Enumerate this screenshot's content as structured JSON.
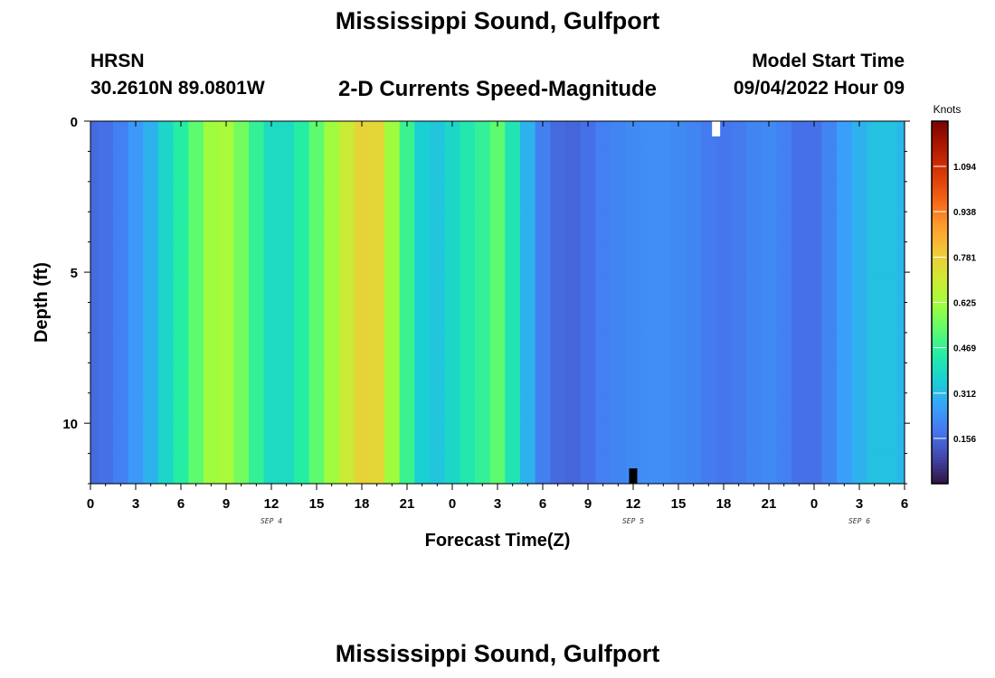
{
  "header": {
    "title": "Mississippi Sound, Gulfport",
    "station": "HRSN",
    "coordinates": "30.2610N  89.0801W",
    "subtitle": "2-D Currents Speed-Magnitude",
    "model_start_label": "Model Start Time",
    "model_start_value": "09/04/2022 Hour 09"
  },
  "footer": {
    "title": "Mississippi Sound, Gulfport"
  },
  "colormap": [
    "#30123b",
    "#4145ab",
    "#4675ed",
    "#39a2fc",
    "#1bcfd4",
    "#24eca6",
    "#61fc6c",
    "#a4fc3b",
    "#d1e834",
    "#f3c63a",
    "#fe9b2d",
    "#f36315",
    "#d93806",
    "#b11901",
    "#7a0402"
  ],
  "chart_data": {
    "type": "heatmap",
    "xlabel": "Forecast Time(Z)",
    "ylabel": "Depth (ft)",
    "x_ticks": [
      "0",
      "3",
      "6",
      "9",
      "12",
      "15",
      "18",
      "21",
      "0",
      "3",
      "6",
      "9",
      "12",
      "15",
      "18",
      "21",
      "0",
      "3",
      "6"
    ],
    "x_range_hours": [
      0,
      54
    ],
    "date_labels": [
      {
        "text": "SEP 4",
        "hour": 12
      },
      {
        "text": "SEP 5",
        "hour": 36
      },
      {
        "text": "SEP 6",
        "hour": 51
      }
    ],
    "y_ticks": [
      0,
      5,
      10
    ],
    "y_range_ft": [
      0,
      12
    ],
    "depths_ft": [
      0.5,
      1.5,
      2.5,
      3.5,
      4.5,
      5.5,
      6.5,
      7.5,
      8.5,
      9.5,
      10.5,
      11.5
    ],
    "time_step_hours": 1,
    "colorbar": {
      "label": "Knots",
      "ticks": [
        "0.156",
        "0.312",
        "0.469",
        "0.625",
        "0.781",
        "0.938",
        "1.094"
      ],
      "range": [
        0.0,
        1.25
      ]
    },
    "missing_points": [
      {
        "hour": 41.5,
        "depth_ft": 0.25,
        "color": "white"
      },
      {
        "hour": 36,
        "depth_ft": 11.75,
        "color": "black"
      }
    ],
    "speed_knots": [
      [
        0.16,
        0.17,
        0.2,
        0.25,
        0.3,
        0.38,
        0.45,
        0.53,
        0.62,
        0.63,
        0.56,
        0.47,
        0.39,
        0.39,
        0.45,
        0.53,
        0.62,
        0.7,
        0.77,
        0.76,
        0.62,
        0.48,
        0.36,
        0.34,
        0.38,
        0.43,
        0.47,
        0.53,
        0.42,
        0.3,
        0.2,
        0.16,
        0.15,
        0.17,
        0.2,
        0.21,
        0.22,
        0.23,
        0.23,
        0.22,
        0.21,
        0.19,
        0.18,
        0.19,
        0.21,
        0.22,
        0.2,
        0.17,
        0.17,
        0.21,
        0.26,
        0.3,
        0.33,
        0.33,
        0.31
      ],
      [
        0.16,
        0.17,
        0.2,
        0.25,
        0.3,
        0.38,
        0.45,
        0.53,
        0.62,
        0.63,
        0.56,
        0.47,
        0.39,
        0.39,
        0.45,
        0.53,
        0.62,
        0.7,
        0.77,
        0.76,
        0.62,
        0.48,
        0.36,
        0.34,
        0.38,
        0.43,
        0.47,
        0.53,
        0.42,
        0.3,
        0.2,
        0.16,
        0.15,
        0.17,
        0.2,
        0.21,
        0.22,
        0.23,
        0.23,
        0.22,
        0.21,
        0.19,
        0.18,
        0.19,
        0.21,
        0.22,
        0.2,
        0.17,
        0.17,
        0.21,
        0.26,
        0.3,
        0.33,
        0.33,
        0.31
      ],
      [
        0.16,
        0.17,
        0.2,
        0.25,
        0.3,
        0.38,
        0.45,
        0.53,
        0.62,
        0.63,
        0.56,
        0.47,
        0.39,
        0.39,
        0.45,
        0.53,
        0.62,
        0.7,
        0.77,
        0.76,
        0.62,
        0.48,
        0.36,
        0.34,
        0.38,
        0.43,
        0.47,
        0.53,
        0.42,
        0.3,
        0.2,
        0.16,
        0.15,
        0.17,
        0.2,
        0.21,
        0.22,
        0.23,
        0.23,
        0.22,
        0.21,
        0.19,
        0.18,
        0.19,
        0.21,
        0.22,
        0.2,
        0.17,
        0.17,
        0.21,
        0.26,
        0.3,
        0.33,
        0.33,
        0.31
      ],
      [
        0.16,
        0.17,
        0.2,
        0.25,
        0.3,
        0.38,
        0.45,
        0.53,
        0.62,
        0.63,
        0.56,
        0.47,
        0.39,
        0.39,
        0.45,
        0.53,
        0.62,
        0.7,
        0.77,
        0.76,
        0.62,
        0.48,
        0.36,
        0.34,
        0.38,
        0.43,
        0.47,
        0.53,
        0.42,
        0.3,
        0.2,
        0.16,
        0.15,
        0.17,
        0.2,
        0.21,
        0.22,
        0.23,
        0.23,
        0.22,
        0.21,
        0.19,
        0.18,
        0.19,
        0.21,
        0.22,
        0.2,
        0.17,
        0.17,
        0.21,
        0.26,
        0.3,
        0.33,
        0.33,
        0.31
      ],
      [
        0.16,
        0.17,
        0.2,
        0.25,
        0.3,
        0.38,
        0.45,
        0.53,
        0.62,
        0.63,
        0.56,
        0.47,
        0.39,
        0.39,
        0.45,
        0.53,
        0.62,
        0.7,
        0.77,
        0.76,
        0.62,
        0.48,
        0.36,
        0.34,
        0.38,
        0.43,
        0.47,
        0.53,
        0.42,
        0.3,
        0.2,
        0.16,
        0.15,
        0.17,
        0.2,
        0.21,
        0.22,
        0.23,
        0.23,
        0.22,
        0.21,
        0.19,
        0.18,
        0.19,
        0.21,
        0.22,
        0.2,
        0.17,
        0.17,
        0.21,
        0.26,
        0.3,
        0.33,
        0.33,
        0.31
      ],
      [
        0.16,
        0.17,
        0.2,
        0.25,
        0.3,
        0.38,
        0.45,
        0.53,
        0.62,
        0.63,
        0.56,
        0.47,
        0.39,
        0.39,
        0.45,
        0.53,
        0.62,
        0.7,
        0.77,
        0.76,
        0.62,
        0.48,
        0.36,
        0.34,
        0.38,
        0.43,
        0.47,
        0.53,
        0.42,
        0.3,
        0.2,
        0.16,
        0.15,
        0.17,
        0.2,
        0.21,
        0.22,
        0.23,
        0.23,
        0.22,
        0.21,
        0.19,
        0.18,
        0.19,
        0.21,
        0.22,
        0.2,
        0.17,
        0.17,
        0.21,
        0.26,
        0.3,
        0.33,
        0.33,
        0.31
      ],
      [
        0.16,
        0.17,
        0.2,
        0.25,
        0.3,
        0.38,
        0.45,
        0.53,
        0.62,
        0.63,
        0.56,
        0.47,
        0.39,
        0.39,
        0.45,
        0.53,
        0.62,
        0.7,
        0.77,
        0.76,
        0.62,
        0.48,
        0.36,
        0.34,
        0.38,
        0.43,
        0.47,
        0.53,
        0.42,
        0.3,
        0.2,
        0.16,
        0.15,
        0.17,
        0.2,
        0.21,
        0.22,
        0.23,
        0.23,
        0.22,
        0.21,
        0.19,
        0.18,
        0.19,
        0.21,
        0.22,
        0.2,
        0.17,
        0.17,
        0.21,
        0.26,
        0.3,
        0.33,
        0.33,
        0.31
      ],
      [
        0.16,
        0.17,
        0.2,
        0.25,
        0.3,
        0.38,
        0.45,
        0.53,
        0.62,
        0.63,
        0.56,
        0.47,
        0.39,
        0.39,
        0.45,
        0.53,
        0.62,
        0.7,
        0.77,
        0.76,
        0.62,
        0.48,
        0.36,
        0.34,
        0.38,
        0.43,
        0.47,
        0.53,
        0.42,
        0.3,
        0.2,
        0.16,
        0.15,
        0.17,
        0.2,
        0.21,
        0.22,
        0.23,
        0.23,
        0.22,
        0.21,
        0.19,
        0.18,
        0.19,
        0.21,
        0.22,
        0.2,
        0.17,
        0.17,
        0.21,
        0.26,
        0.3,
        0.33,
        0.33,
        0.31
      ],
      [
        0.16,
        0.17,
        0.2,
        0.25,
        0.3,
        0.38,
        0.45,
        0.53,
        0.62,
        0.63,
        0.56,
        0.47,
        0.39,
        0.39,
        0.45,
        0.53,
        0.62,
        0.7,
        0.77,
        0.76,
        0.62,
        0.48,
        0.36,
        0.34,
        0.38,
        0.43,
        0.47,
        0.53,
        0.42,
        0.3,
        0.2,
        0.16,
        0.15,
        0.17,
        0.2,
        0.21,
        0.22,
        0.23,
        0.23,
        0.22,
        0.21,
        0.19,
        0.18,
        0.19,
        0.21,
        0.22,
        0.2,
        0.17,
        0.17,
        0.21,
        0.26,
        0.3,
        0.33,
        0.33,
        0.31
      ],
      [
        0.16,
        0.17,
        0.2,
        0.25,
        0.3,
        0.38,
        0.45,
        0.53,
        0.62,
        0.63,
        0.56,
        0.47,
        0.39,
        0.39,
        0.45,
        0.53,
        0.62,
        0.7,
        0.77,
        0.76,
        0.62,
        0.48,
        0.36,
        0.34,
        0.38,
        0.43,
        0.47,
        0.53,
        0.42,
        0.3,
        0.2,
        0.16,
        0.15,
        0.17,
        0.2,
        0.21,
        0.22,
        0.23,
        0.23,
        0.22,
        0.21,
        0.19,
        0.18,
        0.19,
        0.21,
        0.22,
        0.2,
        0.17,
        0.17,
        0.21,
        0.26,
        0.3,
        0.33,
        0.33,
        0.31
      ],
      [
        0.16,
        0.17,
        0.2,
        0.25,
        0.3,
        0.38,
        0.45,
        0.53,
        0.62,
        0.63,
        0.56,
        0.47,
        0.39,
        0.39,
        0.45,
        0.53,
        0.62,
        0.7,
        0.77,
        0.76,
        0.62,
        0.48,
        0.36,
        0.34,
        0.38,
        0.43,
        0.47,
        0.53,
        0.42,
        0.3,
        0.2,
        0.16,
        0.15,
        0.17,
        0.2,
        0.21,
        0.22,
        0.23,
        0.23,
        0.22,
        0.21,
        0.19,
        0.18,
        0.19,
        0.21,
        0.22,
        0.2,
        0.17,
        0.17,
        0.21,
        0.26,
        0.3,
        0.33,
        0.33,
        0.31
      ],
      [
        0.16,
        0.17,
        0.2,
        0.25,
        0.3,
        0.38,
        0.45,
        0.53,
        0.62,
        0.63,
        0.56,
        0.47,
        0.39,
        0.39,
        0.45,
        0.53,
        0.62,
        0.7,
        0.77,
        0.76,
        0.62,
        0.48,
        0.36,
        0.34,
        0.38,
        0.43,
        0.47,
        0.53,
        0.42,
        0.3,
        0.2,
        0.16,
        0.15,
        0.17,
        0.2,
        0.21,
        0.22,
        0.23,
        0.23,
        0.22,
        0.21,
        0.19,
        0.18,
        0.19,
        0.21,
        0.22,
        0.2,
        0.17,
        0.17,
        0.21,
        0.26,
        0.3,
        0.33,
        0.33,
        0.31
      ]
    ]
  }
}
